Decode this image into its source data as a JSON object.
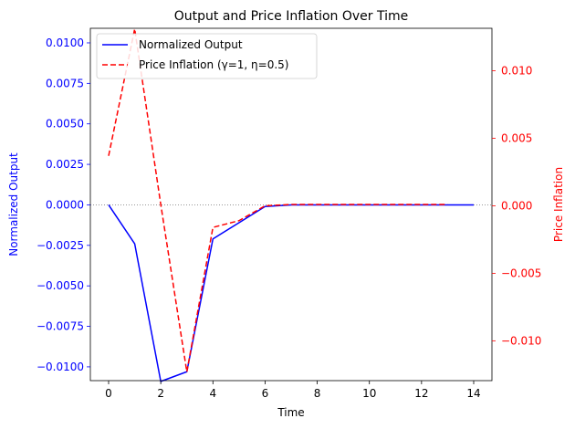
{
  "chart_data": {
    "type": "line",
    "title": "Output and Price Inflation Over Time",
    "xlabel": "Time",
    "xlim": [
      -0.7,
      14.7
    ],
    "xticks": [
      0,
      2,
      4,
      6,
      8,
      10,
      12,
      14
    ],
    "grid": false,
    "legend_position": "upper-left",
    "zero_line": {
      "y": 0,
      "color": "#888888",
      "style": "dotted"
    },
    "axes": {
      "left": {
        "label": "Normalized Output",
        "color": "#0000ff",
        "ylim": [
          -0.01085,
          0.0109
        ],
        "ticks": [
          -0.01,
          -0.0075,
          -0.005,
          -0.0025,
          0.0,
          0.0025,
          0.005,
          0.0075,
          0.01
        ],
        "tick_labels": [
          "−0.0100",
          "−0.0075",
          "−0.0050",
          "−0.0025",
          "0.0000",
          "0.0025",
          "0.0050",
          "0.0075",
          "0.0100"
        ]
      },
      "right": {
        "label": "Price Inflation",
        "color": "#ff0000",
        "ylim": [
          -0.01295,
          0.01315
        ],
        "ticks": [
          -0.01,
          -0.005,
          0.0,
          0.005,
          0.01
        ],
        "tick_labels": [
          "−0.010",
          "−0.005",
          "0.000",
          "0.005",
          "0.010"
        ]
      }
    },
    "series": [
      {
        "name": "Normalized Output",
        "axis": "left",
        "color": "#0000ff",
        "style": "solid",
        "x": [
          0,
          1,
          2,
          3,
          4,
          5,
          6,
          7,
          8,
          9,
          10,
          11,
          12,
          13,
          14
        ],
        "values": [
          0.0,
          -0.0024,
          -0.0109,
          -0.0103,
          -0.0021,
          -0.0011,
          -0.0001,
          0.0,
          0.0,
          0.0,
          0.0,
          0.0,
          0.0,
          0.0,
          0.0
        ]
      },
      {
        "name": "Price Inflation (γ=1, η=0.5)",
        "axis": "right",
        "color": "#ff0000",
        "style": "dashed",
        "x": [
          0,
          1,
          2,
          3,
          4,
          5,
          6,
          7,
          8,
          9,
          10,
          11,
          12,
          13
        ],
        "values": [
          0.0037,
          0.0131,
          0.0001,
          -0.0123,
          -0.0016,
          -0.0011,
          0.0,
          0.0001,
          0.0001,
          0.0001,
          0.0001,
          0.0001,
          0.0001,
          0.0001
        ]
      }
    ]
  }
}
